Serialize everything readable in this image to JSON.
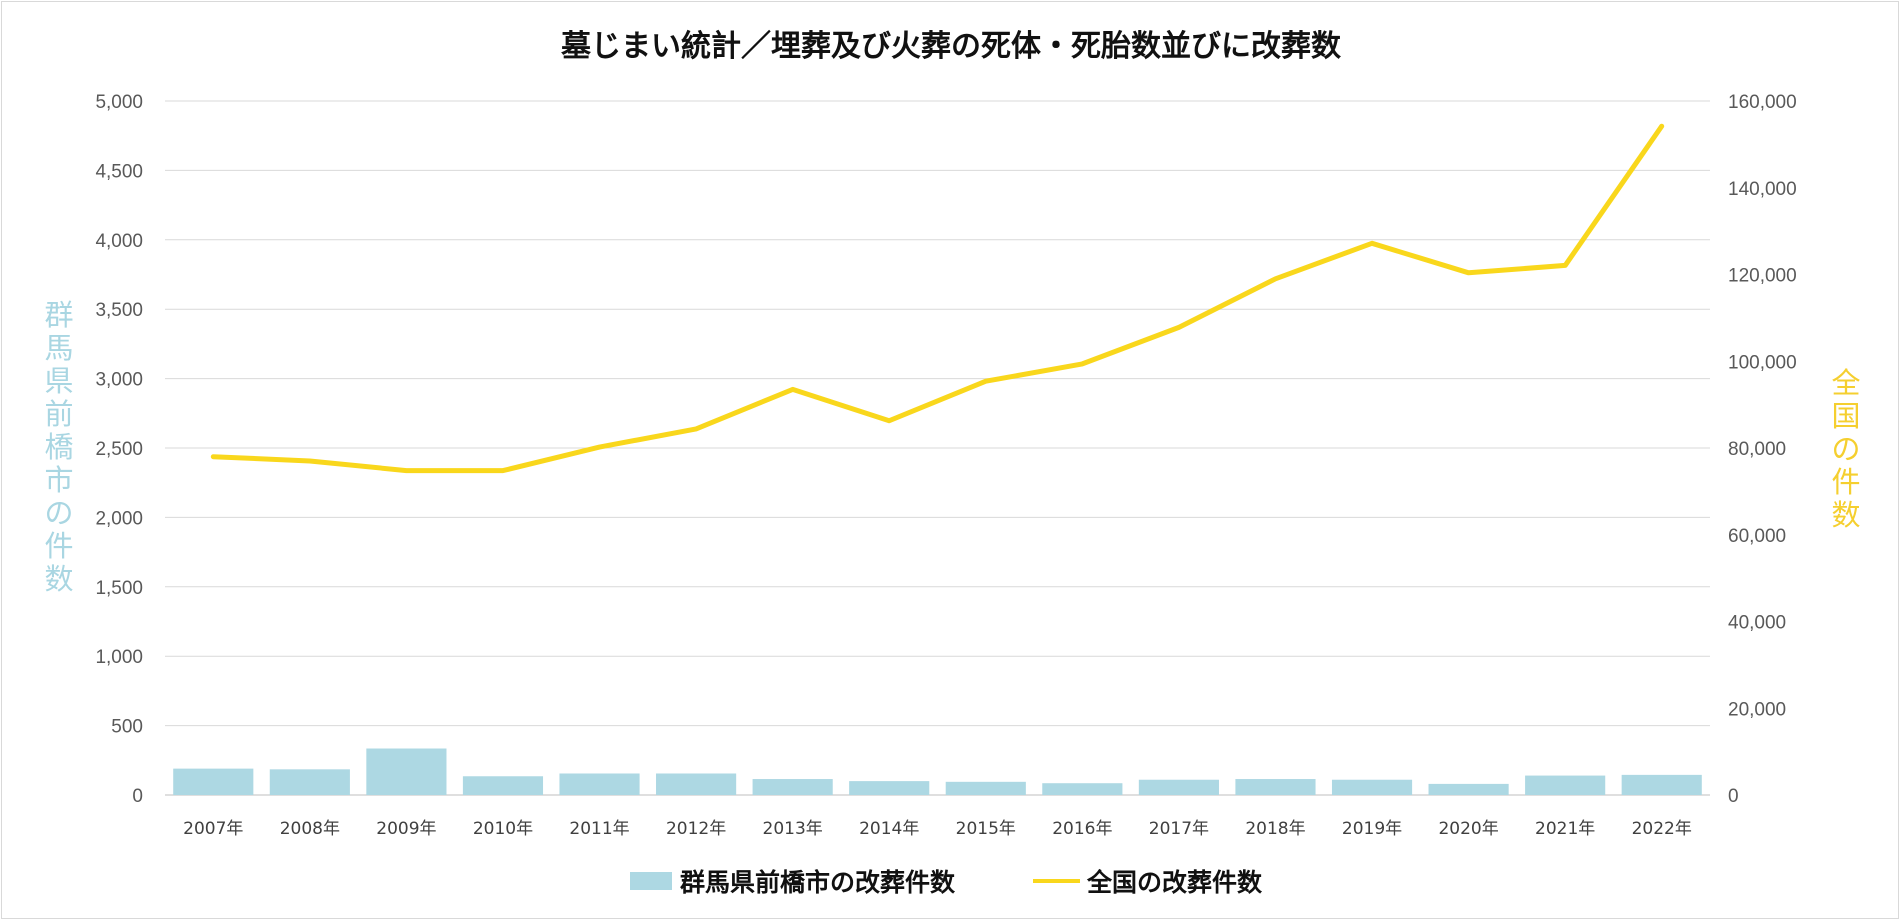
{
  "chart_data": {
    "type": "bar+line",
    "title": "墓じまい統計／埋葬及び火葬の死体・死胎数並びに改葬数",
    "categories": [
      "2007年",
      "2008年",
      "2009年",
      "2010年",
      "2011年",
      "2012年",
      "2013年",
      "2014年",
      "2015年",
      "2016年",
      "2017年",
      "2018年",
      "2019年",
      "2020年",
      "2021年",
      "2022年"
    ],
    "series": [
      {
        "name": "群馬県前橋市の改葬件数",
        "type": "bar",
        "axis": "left",
        "color": "#add8e3",
        "values": [
          190,
          185,
          335,
          135,
          155,
          155,
          115,
          100,
          95,
          85,
          110,
          115,
          110,
          80,
          140,
          145
        ]
      },
      {
        "name": "全国の改葬件数",
        "type": "line",
        "axis": "right",
        "color": "#f9d71c",
        "values": [
          78000,
          77000,
          74800,
          74800,
          80200,
          84400,
          93500,
          86300,
          95400,
          99400,
          107800,
          119000,
          127200,
          120400,
          122100,
          154200
        ]
      }
    ],
    "y_left": {
      "label": "群馬県前橋市の件数",
      "range": [
        0,
        5000
      ],
      "ticks": [
        "0",
        "500",
        "1,000",
        "1,500",
        "2,000",
        "2,500",
        "3,000",
        "3,500",
        "4,000",
        "4,500",
        "5,000"
      ]
    },
    "y_right": {
      "label": "全国の件数",
      "range": [
        0,
        160000
      ],
      "ticks": [
        "0",
        "20,000",
        "40,000",
        "60,000",
        "80,000",
        "100,000",
        "120,000",
        "140,000",
        "160,000"
      ]
    },
    "grid": true,
    "legend_position": "bottom"
  }
}
